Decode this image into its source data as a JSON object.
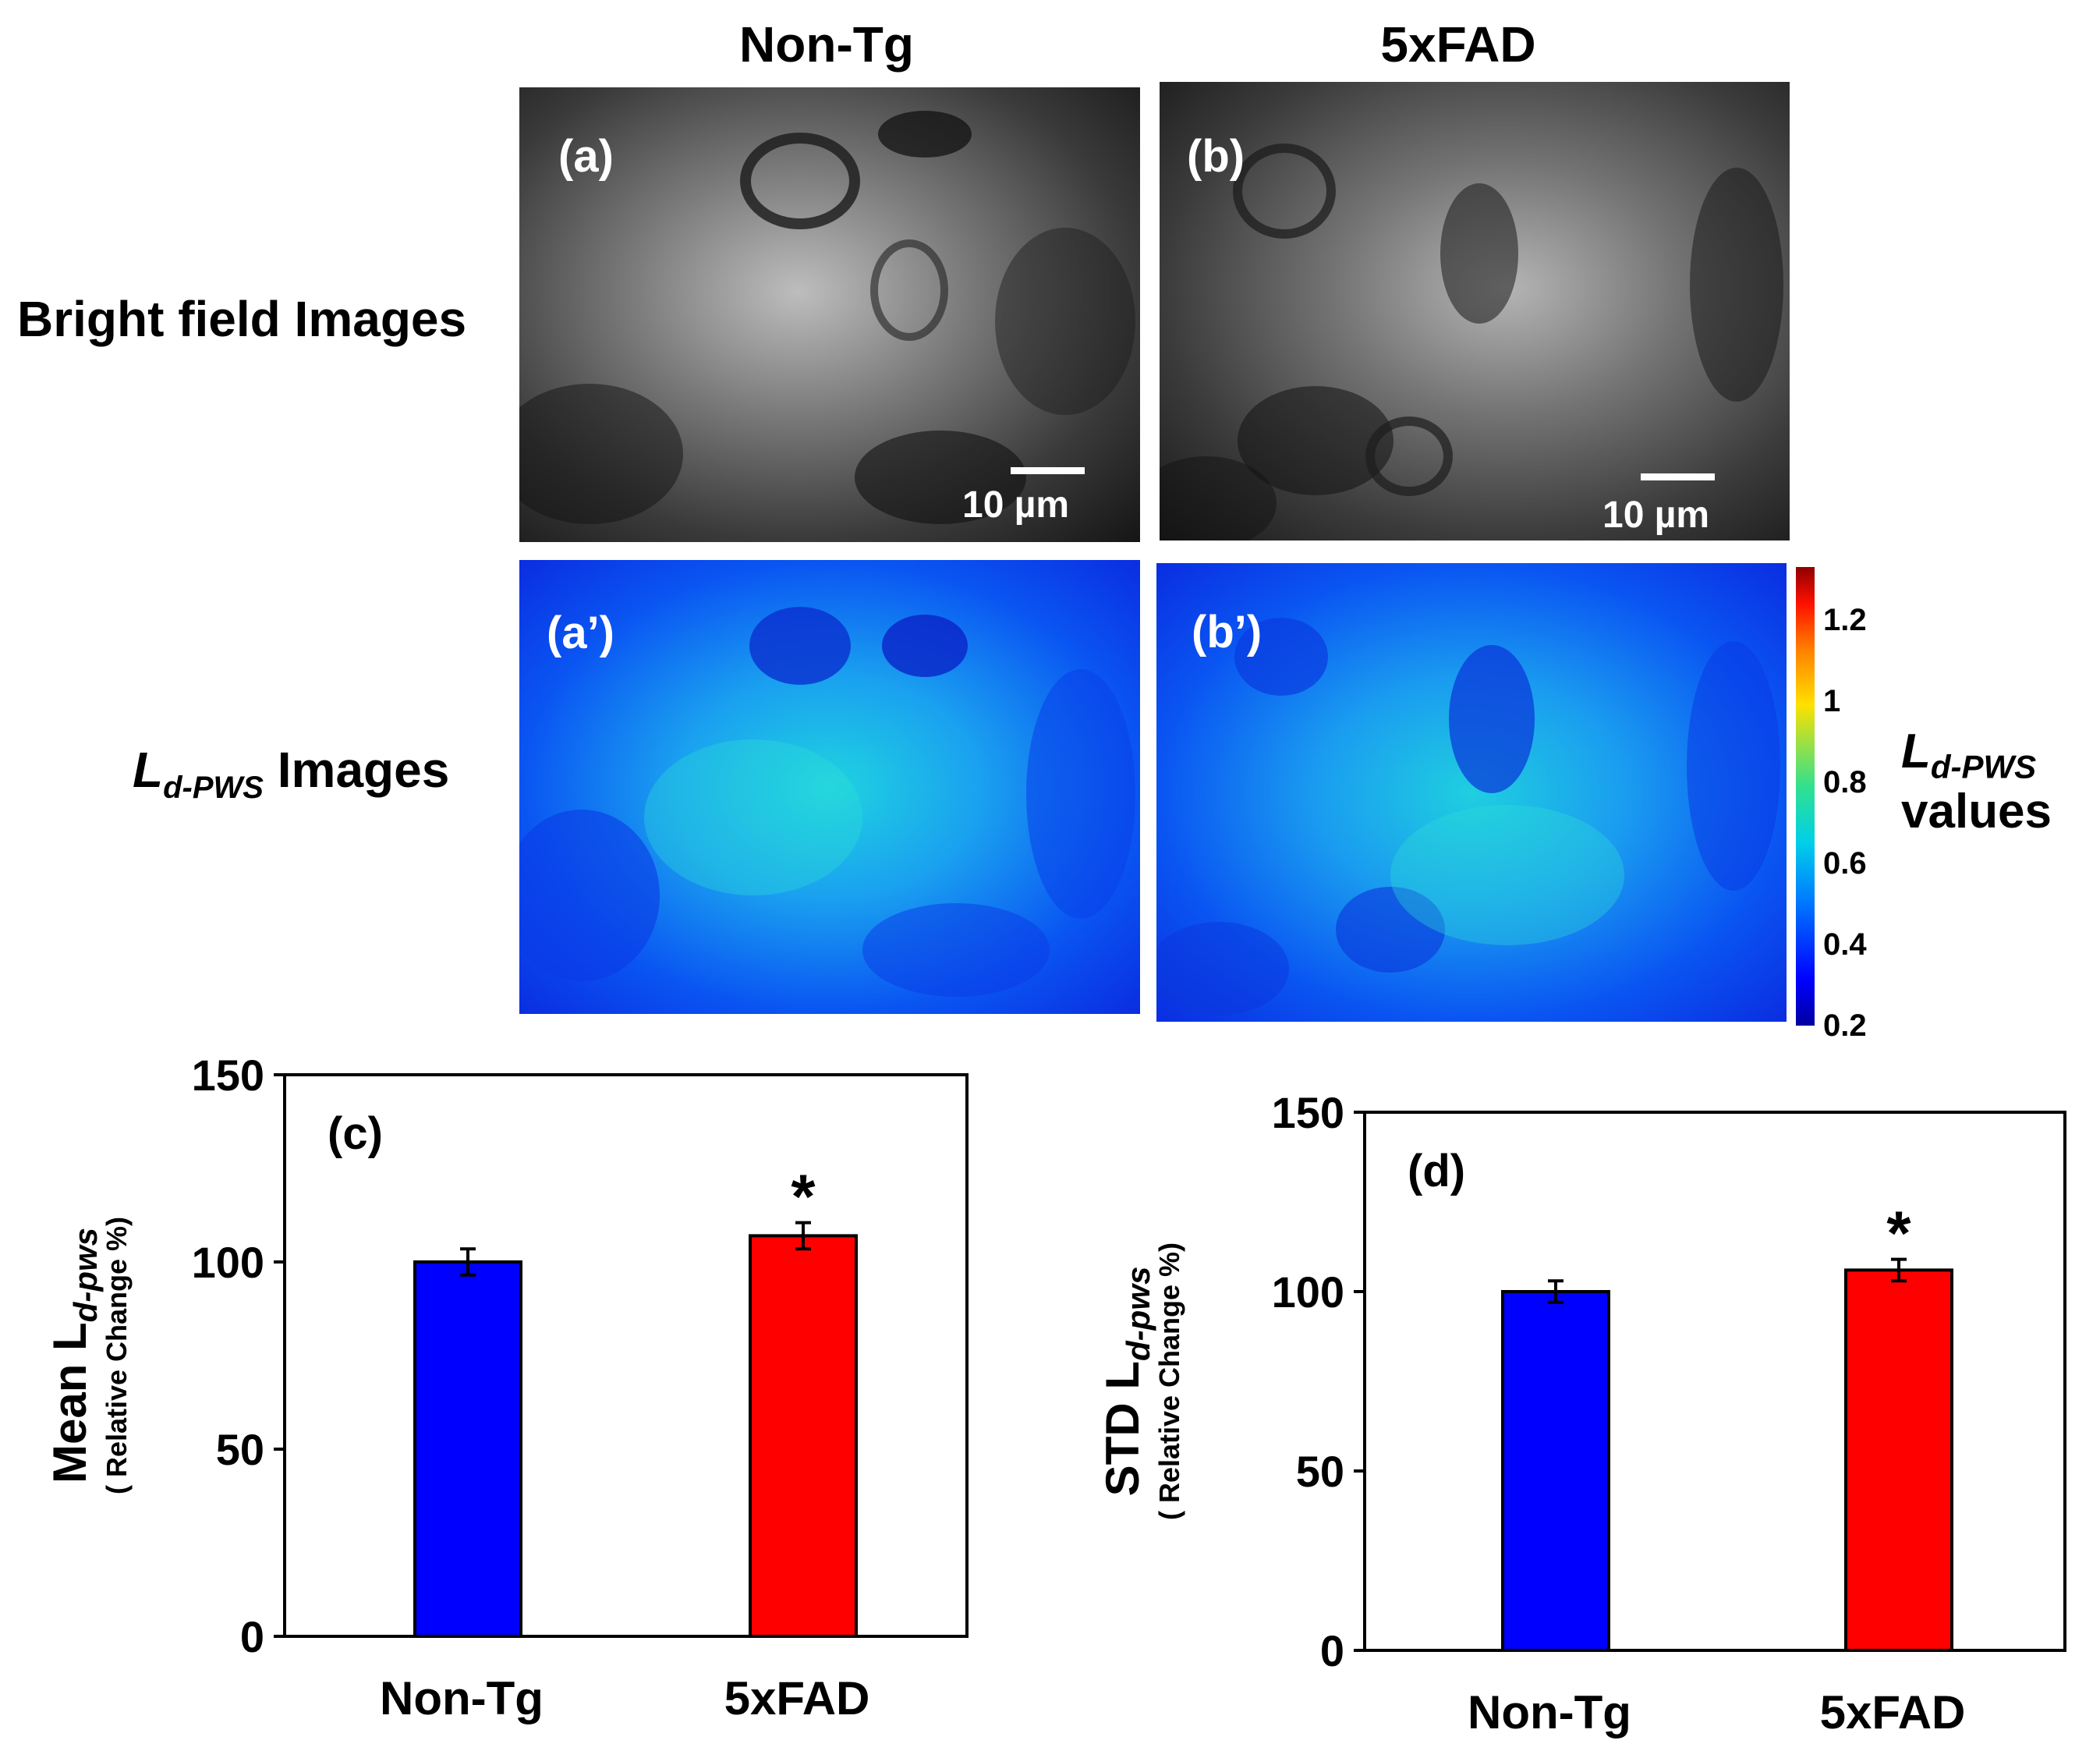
{
  "columns": [
    "Non-Tg",
    "5xFAD"
  ],
  "row_labels": {
    "bright_field": "Bright field Images",
    "ldpws_main": "L",
    "ldpws_sub": "d-PWS",
    "ldpws_rest": " Images"
  },
  "panels": {
    "a": "(a)",
    "b": "(b)",
    "a_prime": "(a’)",
    "b_prime": "(b’)"
  },
  "scale_bar": "10 µm",
  "colorbar": {
    "ticks": [
      "1.2",
      "1",
      "0.8",
      "0.6",
      "0.4",
      "0.2"
    ],
    "label_main": "L",
    "label_sub": "d-PWS",
    "label_line2": "values",
    "range": [
      0.2,
      1.33
    ]
  },
  "colors": {
    "non_tg": "#0000ff",
    "fad": "#ff0000"
  },
  "chart_data": [
    {
      "type": "bar",
      "panel_label": "(c)",
      "categories": [
        "Non-Tg",
        "5xFAD"
      ],
      "values": [
        100,
        107
      ],
      "errors": [
        3.5,
        3.5
      ],
      "significance": [
        "",
        "*"
      ],
      "ylim": [
        0,
        150
      ],
      "yticks": [
        0,
        50,
        100,
        150
      ],
      "ylabel_main": "Mean L",
      "ylabel_sub": "d-pws",
      "ylabel_line2": "( Relative Change %)"
    },
    {
      "type": "bar",
      "panel_label": "(d)",
      "categories": [
        "Non-Tg",
        "5xFAD"
      ],
      "values": [
        100,
        106
      ],
      "errors": [
        3,
        3
      ],
      "significance": [
        "",
        "*"
      ],
      "ylim": [
        0,
        150
      ],
      "yticks": [
        0,
        50,
        100,
        150
      ],
      "ylabel_main": "STD L",
      "ylabel_sub": "d-pws",
      "ylabel_line2": "( Relative Change %)"
    }
  ]
}
